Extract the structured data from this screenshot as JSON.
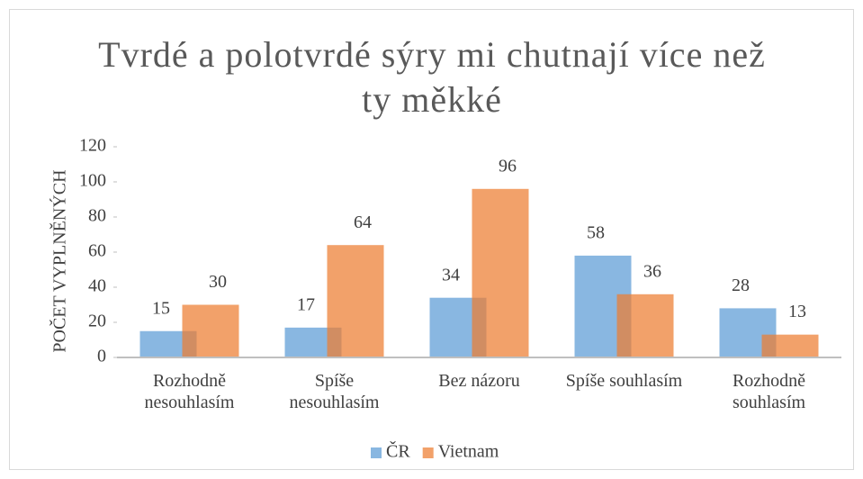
{
  "chart_data": {
    "type": "bar",
    "title": "Tvrdé a polotvrdé sýry mi chutnají více než ty měkké",
    "y_label": "POČET VYPLNĚNÝCH",
    "categories": [
      "Rozhodně nesouhlasím",
      "Spíše nesouhlasím",
      "Bez názoru",
      "Spíše souhlasím",
      "Rozhodně souhlasím"
    ],
    "series": [
      {
        "name": "ČR",
        "color": "#5b9bd5",
        "values": [
          15,
          17,
          34,
          58,
          28
        ]
      },
      {
        "name": "Vietnam",
        "color": "#ed7d31",
        "values": [
          30,
          64,
          96,
          36,
          13
        ]
      }
    ],
    "ylim": [
      0,
      120
    ],
    "yticks": [
      0,
      20,
      40,
      60,
      80,
      100,
      120
    ],
    "legend": "bottom"
  }
}
